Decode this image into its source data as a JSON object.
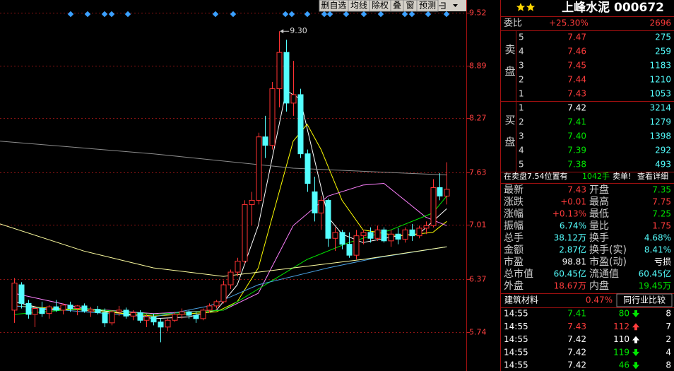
{
  "toolbar": {
    "buttons": [
      "删自选",
      "均线",
      "除权",
      "叠",
      "窗",
      "预测"
    ]
  },
  "chart_data": {
    "type": "candlestick",
    "xlim": [
      -2,
      64.8
    ],
    "ylim": [
      5.28,
      9.67
    ],
    "yticks": [
      9.52,
      8.89,
      8.27,
      7.63,
      7.01,
      6.37,
      5.74
    ],
    "grid": true,
    "up_color": "#ff3232",
    "down_color": "#54ffff",
    "annotation": "9.30",
    "open": [
      6.0,
      6.3,
      6.08,
      5.95,
      6.02,
      5.96,
      6.04,
      6.0,
      6.06,
      6.02,
      6.05,
      5.99,
      6.01,
      5.97,
      5.85,
      5.98,
      6.0,
      5.93,
      5.97,
      5.88,
      5.92,
      5.86,
      5.8,
      5.88,
      5.95,
      5.98,
      5.94,
      5.9,
      6.0,
      6.05,
      6.1,
      6.3,
      6.45,
      6.58,
      7.25,
      7.3,
      8.05,
      7.95,
      8.62,
      9.05,
      8.45,
      8.55,
      7.85,
      7.4,
      7.15,
      7.3,
      6.85,
      6.92,
      6.78,
      6.65,
      6.88,
      6.92,
      6.85,
      6.95,
      6.82,
      6.9,
      6.84,
      6.95,
      6.88,
      6.97,
      7.0,
      7.45,
      7.35
    ],
    "high": [
      6.38,
      6.33,
      6.12,
      6.05,
      6.1,
      6.06,
      6.12,
      6.08,
      6.1,
      6.06,
      6.08,
      6.04,
      6.05,
      6.02,
      6.0,
      6.05,
      6.03,
      6.0,
      6.0,
      5.95,
      5.96,
      5.9,
      5.9,
      5.98,
      6.02,
      6.0,
      5.98,
      6.02,
      6.08,
      6.12,
      6.35,
      6.48,
      6.62,
      7.3,
      7.4,
      8.1,
      8.3,
      8.7,
      9.3,
      9.2,
      8.95,
      8.62,
      7.9,
      7.58,
      7.35,
      7.32,
      6.98,
      6.95,
      6.92,
      6.95,
      6.95,
      6.98,
      7.0,
      6.98,
      6.95,
      6.97,
      6.98,
      7.02,
      7.0,
      7.05,
      7.55,
      7.62,
      7.75
    ],
    "low": [
      5.85,
      6.02,
      5.9,
      5.8,
      5.92,
      5.9,
      5.98,
      5.95,
      5.98,
      5.94,
      5.97,
      5.92,
      5.95,
      5.8,
      5.82,
      5.93,
      5.9,
      5.88,
      5.85,
      5.8,
      5.82,
      5.62,
      5.75,
      5.86,
      5.9,
      5.9,
      5.85,
      5.88,
      5.97,
      6.02,
      6.08,
      6.25,
      6.4,
      6.55,
      7.0,
      7.25,
      7.8,
      7.9,
      8.4,
      8.35,
      8.3,
      7.8,
      7.4,
      7.05,
      6.95,
      6.75,
      6.7,
      6.72,
      6.62,
      6.6,
      6.78,
      6.8,
      6.82,
      6.8,
      6.75,
      6.78,
      6.8,
      6.82,
      6.85,
      6.9,
      6.98,
      7.3,
      7.25
    ],
    "close": [
      6.32,
      6.08,
      5.95,
      6.02,
      5.96,
      6.04,
      6.0,
      6.06,
      6.02,
      6.05,
      5.99,
      6.01,
      5.97,
      5.85,
      5.98,
      6.0,
      5.93,
      5.97,
      5.88,
      5.92,
      5.86,
      5.8,
      5.88,
      5.95,
      5.98,
      5.94,
      5.9,
      6.0,
      6.05,
      6.1,
      6.3,
      6.45,
      6.58,
      7.25,
      7.3,
      8.05,
      7.95,
      8.62,
      9.05,
      8.45,
      8.55,
      7.85,
      7.5,
      7.15,
      7.3,
      6.85,
      6.92,
      6.78,
      6.65,
      6.88,
      6.92,
      6.85,
      6.95,
      6.82,
      6.9,
      6.84,
      6.95,
      6.88,
      6.97,
      7.0,
      7.45,
      7.35,
      7.43
    ],
    "series": [
      {
        "color": "#ffffff",
        "x": [
          0,
          5,
          10,
          15,
          20,
          25,
          29,
          32,
          35,
          37,
          39,
          41,
          43,
          45,
          47,
          50,
          55,
          58,
          62
        ],
        "values": [
          6.1,
          6.0,
          6.02,
          5.97,
          5.9,
          5.92,
          6.0,
          6.3,
          7.0,
          7.8,
          8.6,
          8.5,
          7.8,
          7.1,
          6.9,
          6.8,
          6.88,
          6.9,
          7.2
        ]
      },
      {
        "color": "#ffff00",
        "x": [
          0,
          10,
          20,
          29,
          32,
          35,
          38,
          40,
          42,
          44,
          47,
          50,
          55,
          60,
          62
        ],
        "values": [
          6.05,
          6.0,
          5.93,
          5.98,
          6.1,
          6.5,
          7.4,
          8.0,
          8.2,
          7.9,
          7.3,
          6.95,
          6.88,
          6.92,
          7.05
        ]
      },
      {
        "color": "#ff80ff",
        "x": [
          0,
          10,
          20,
          30,
          35,
          40,
          45,
          50,
          53,
          56,
          59,
          62
        ],
        "values": [
          6.2,
          6.02,
          5.96,
          6.0,
          6.2,
          7.0,
          7.35,
          7.48,
          7.5,
          7.3,
          7.1,
          7.0
        ]
      },
      {
        "color": "#00e600",
        "x": [
          0,
          10,
          20,
          30,
          36,
          42,
          48,
          54,
          60,
          62
        ],
        "values": [
          5.95,
          6.02,
          5.95,
          6.0,
          6.3,
          6.6,
          6.8,
          6.95,
          7.15,
          7.35
        ]
      },
      {
        "color": "#4aa0e0",
        "x": [
          0,
          10,
          20,
          28,
          35,
          45,
          52,
          62
        ],
        "values": [
          6.05,
          5.98,
          5.92,
          6.05,
          6.3,
          6.5,
          6.62,
          6.75
        ]
      },
      {
        "color": "#ffffa0",
        "x": [
          -2,
          10,
          20,
          30,
          40,
          50,
          62
        ],
        "values": [
          7.02,
          6.7,
          6.5,
          6.4,
          6.5,
          6.6,
          6.75
        ]
      },
      {
        "color": "#8c8c8c",
        "x": [
          -2,
          20,
          40,
          62
        ],
        "values": [
          8.0,
          7.85,
          7.68,
          7.6
        ]
      }
    ]
  },
  "quote": {
    "title": "上峰水泥 000672"
  },
  "order_book": {
    "ratio_label": "委比",
    "ratio": "+25.30%",
    "diff": "2696",
    "sell_label": "卖盘",
    "buy_label": "买盘",
    "sell": [
      {
        "level": "5",
        "price": "7.47",
        "volume": "275",
        "tone": "up"
      },
      {
        "level": "4",
        "price": "7.46",
        "volume": "259",
        "tone": "up"
      },
      {
        "level": "3",
        "price": "7.45",
        "volume": "1183",
        "tone": "up"
      },
      {
        "level": "2",
        "price": "7.44",
        "volume": "1210",
        "tone": "up"
      },
      {
        "level": "1",
        "price": "7.43",
        "volume": "1053",
        "tone": "up"
      }
    ],
    "buy": [
      {
        "level": "1",
        "price": "7.42",
        "volume": "3214",
        "tone": "flat"
      },
      {
        "level": "2",
        "price": "7.41",
        "volume": "1279",
        "tone": "down"
      },
      {
        "level": "3",
        "price": "7.40",
        "volume": "1398",
        "tone": "down"
      },
      {
        "level": "4",
        "price": "7.39",
        "volume": "292",
        "tone": "down"
      },
      {
        "level": "5",
        "price": "7.38",
        "volume": "493",
        "tone": "down"
      }
    ]
  },
  "notice": {
    "text": "在卖盘7.54位置有",
    "volume": "1042手",
    "suffix": "卖单!",
    "link": "查看详细"
  },
  "stats": [
    {
      "label": "最新",
      "value": "7.43",
      "tone": "up",
      "label2": "开盘",
      "value2": "7.35",
      "tone2": "down"
    },
    {
      "label": "涨跌",
      "value": "+0.01",
      "tone": "up",
      "label2": "最高",
      "value2": "7.75",
      "tone2": "up"
    },
    {
      "label": "涨幅",
      "value": "+0.13%",
      "tone": "up",
      "label2": "最低",
      "value2": "7.25",
      "tone2": "down"
    },
    {
      "label": "振幅",
      "value": "6.74%",
      "tone": "info",
      "label2": "量比",
      "value2": "1.75",
      "tone2": "up"
    },
    {
      "label": "总手",
      "value": "38.12万",
      "tone": "info",
      "label2": "换手",
      "value2": "4.68%",
      "tone2": "info"
    },
    {
      "label": "金额",
      "value": "2.87亿",
      "tone": "info",
      "label2": "换手(实)",
      "value2": "8.41%",
      "tone2": "info"
    },
    {
      "label": "市盈",
      "value": "98.81",
      "tone": "flat",
      "label2": "市盈(动)",
      "value2": "亏损",
      "tone2": "flat"
    },
    {
      "label": "总市值",
      "value": "60.45亿",
      "tone": "info",
      "label2": "流通值",
      "value2": "60.45亿",
      "tone2": "info"
    },
    {
      "label": "外盘",
      "value": "18.67万",
      "tone": "up",
      "label2": "内盘",
      "value2": "19.45万",
      "tone2": "down"
    }
  ],
  "industry": {
    "name": "建筑材料",
    "change": "0.47%",
    "button": "同行业比较"
  },
  "trades": [
    {
      "time": "14:55",
      "price": "7.41",
      "tone": "down",
      "volume": "80",
      "dir": "down",
      "count": "8"
    },
    {
      "time": "14:55",
      "price": "7.43",
      "tone": "up",
      "volume": "112",
      "dir": "up",
      "count": "7"
    },
    {
      "time": "14:55",
      "price": "7.42",
      "tone": "flat",
      "volume": "110",
      "dir": "up-flat",
      "count": "2"
    },
    {
      "time": "14:55",
      "price": "7.42",
      "tone": "flat",
      "volume": "119",
      "dir": "down",
      "count": "4"
    },
    {
      "time": "14:55",
      "price": "7.42",
      "tone": "flat",
      "volume": "46",
      "dir": "down",
      "count": "8"
    }
  ]
}
